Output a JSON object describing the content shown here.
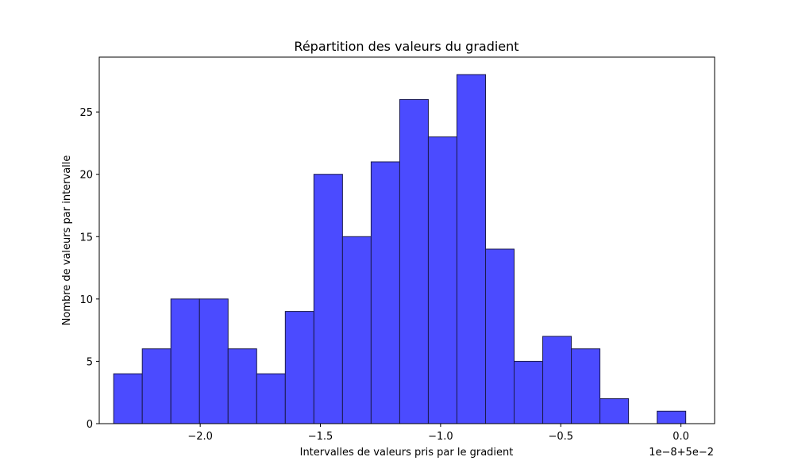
{
  "chart_data": {
    "type": "bar",
    "title": "Répartition des valeurs du gradient",
    "xlabel": "Intervalles de valeurs pris par le gradient",
    "ylabel": "Nombre de valeurs par intervalle",
    "axis_offset_label": "1e−8+5e−2",
    "xlim": [
      -2.42,
      0.14
    ],
    "ylim": [
      0,
      29.4
    ],
    "xticks": [
      {
        "value": -2.0,
        "label": "−2.0"
      },
      {
        "value": -1.5,
        "label": "−1.5"
      },
      {
        "value": -1.0,
        "label": "−1.0"
      },
      {
        "value": -0.5,
        "label": "−0.5"
      },
      {
        "value": 0.0,
        "label": "0.0"
      }
    ],
    "yticks": [
      {
        "value": 0,
        "label": "0"
      },
      {
        "value": 5,
        "label": "5"
      },
      {
        "value": 10,
        "label": "10"
      },
      {
        "value": 15,
        "label": "15"
      },
      {
        "value": 20,
        "label": "20"
      },
      {
        "value": 25,
        "label": "25"
      }
    ],
    "bin_start": -2.36,
    "bin_width": 0.119,
    "counts": [
      4,
      6,
      10,
      10,
      6,
      4,
      9,
      20,
      15,
      21,
      26,
      23,
      28,
      14,
      5,
      7,
      6,
      2,
      0,
      1
    ],
    "bar_color": "#4b4bff",
    "edge_color": "#1a1a4d",
    "grid": false
  }
}
